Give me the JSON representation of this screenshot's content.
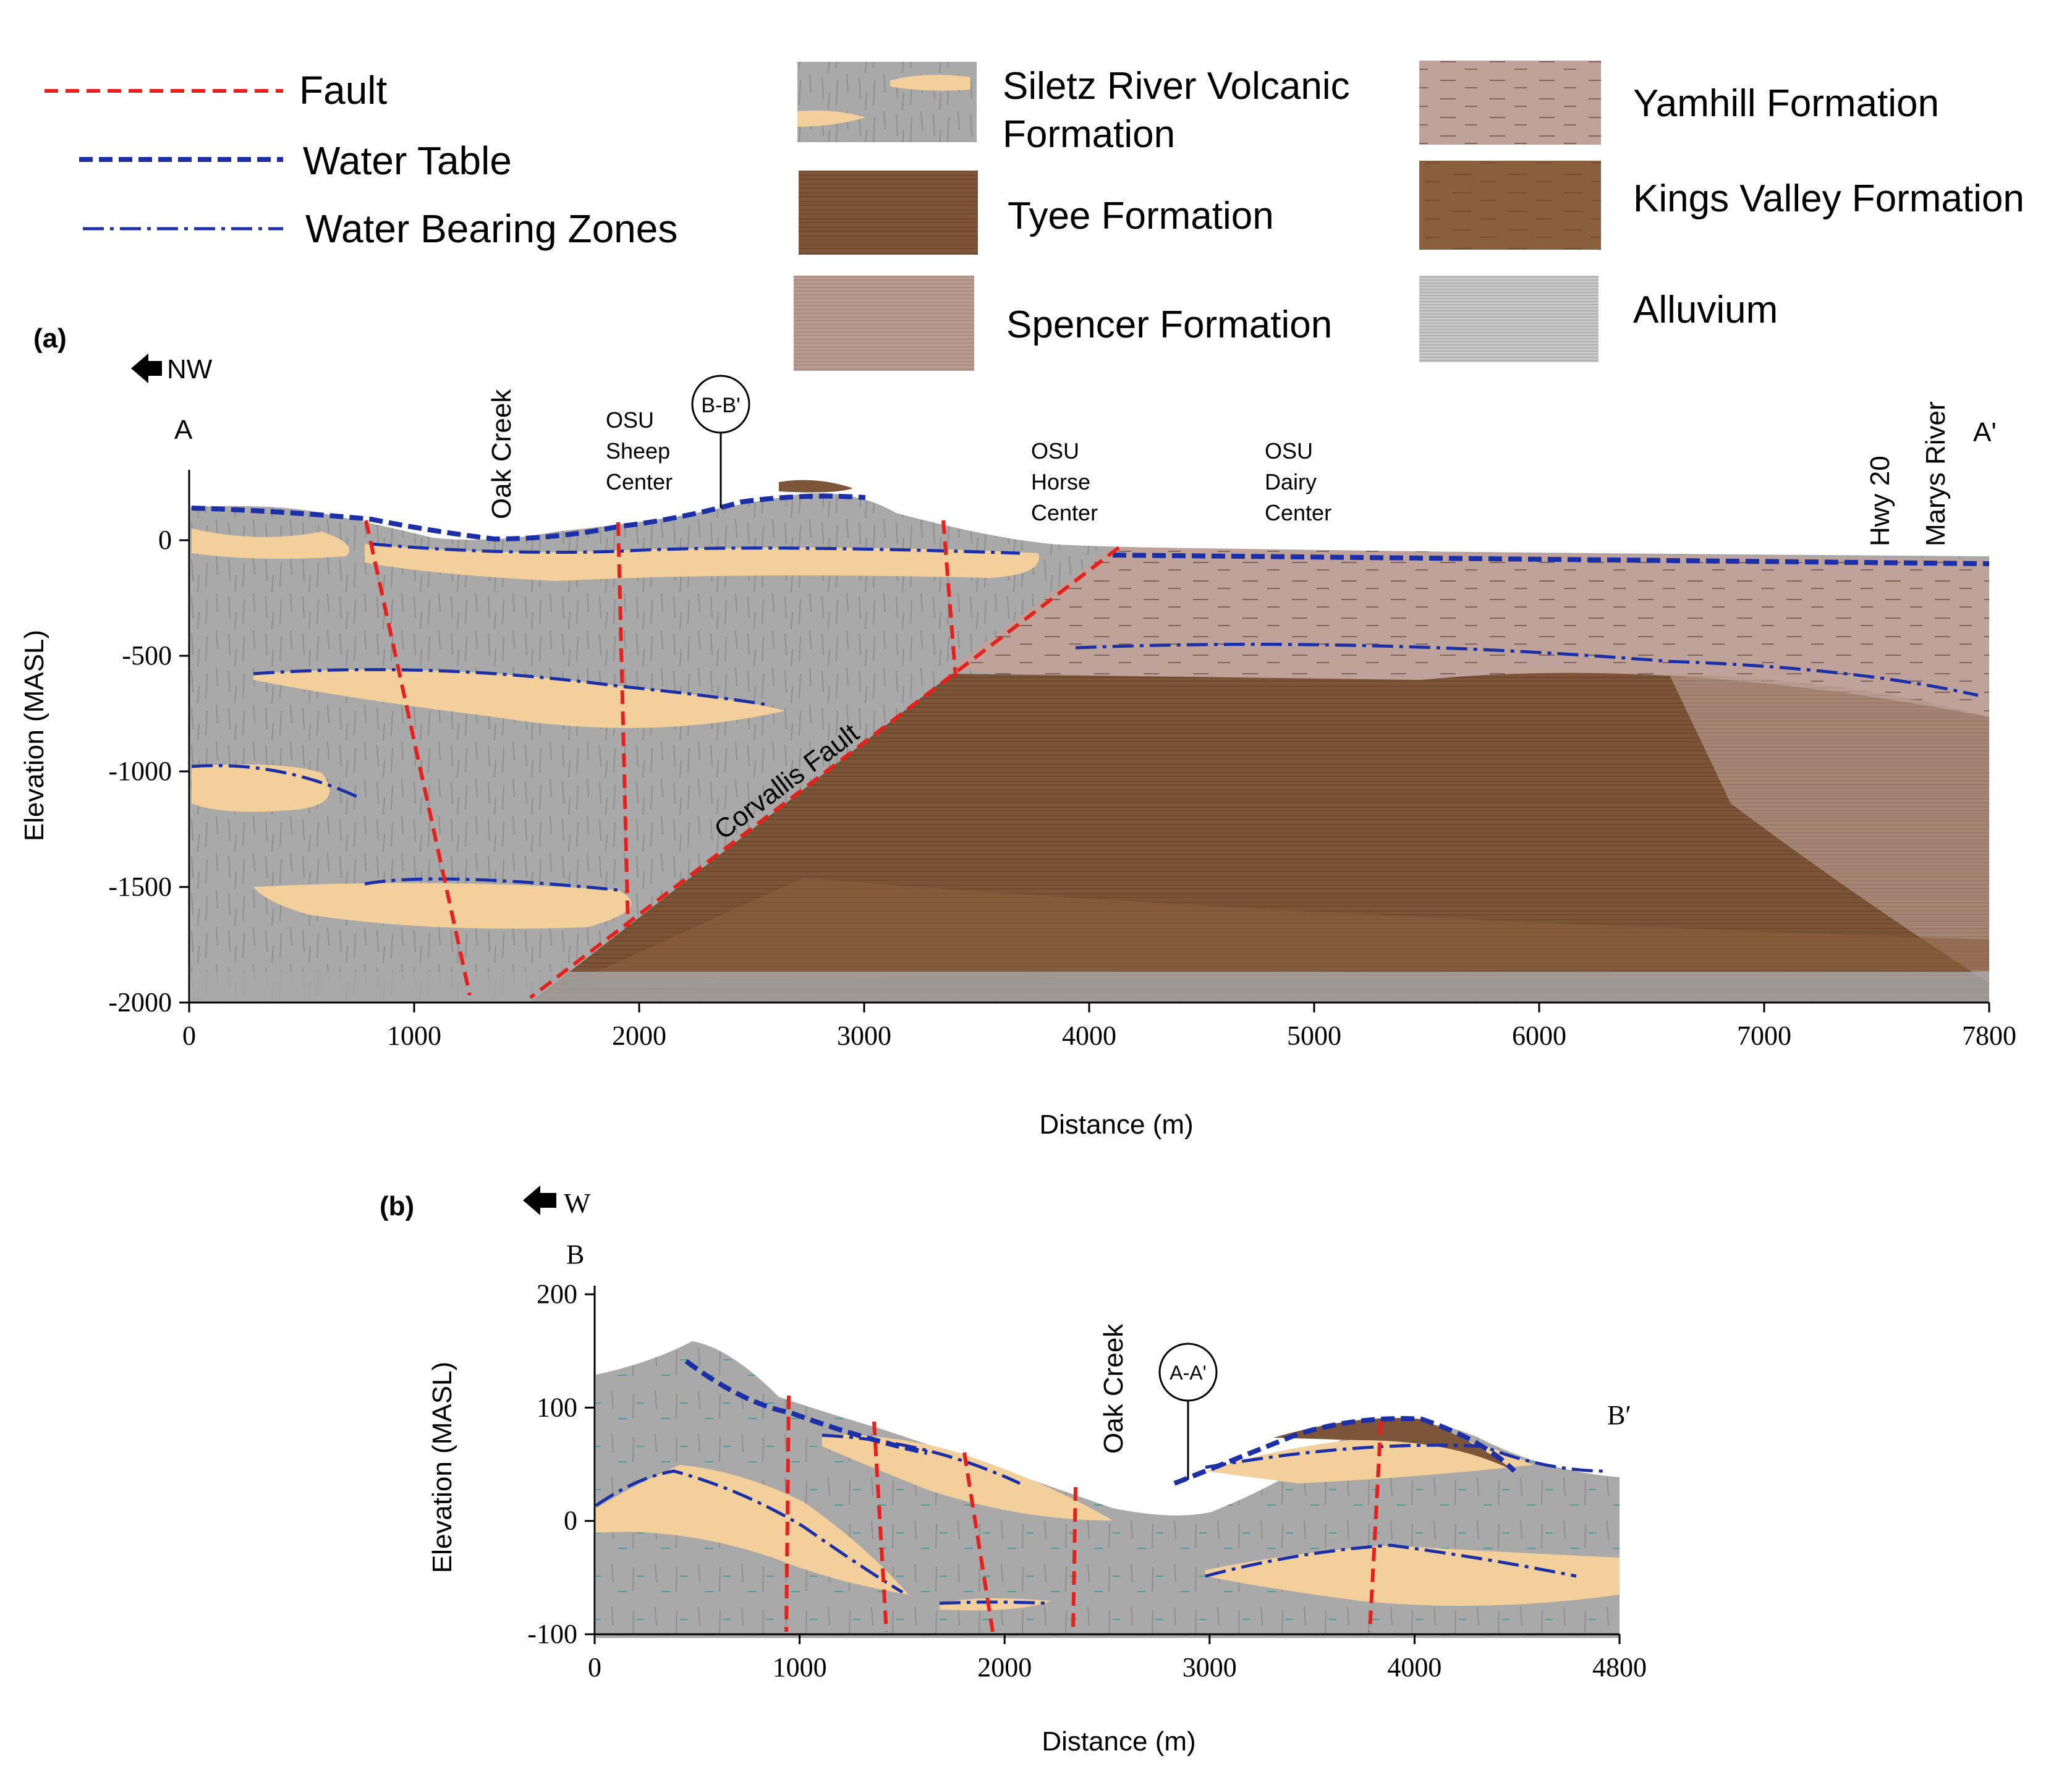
{
  "legend": {
    "lines": [
      {
        "label": "Fault",
        "color": "#e8201b",
        "style": "dashed"
      },
      {
        "label": "Water Table",
        "color": "#1a2fa8",
        "style": "dashed"
      },
      {
        "label": "Water Bearing Zones",
        "color": "#1a2fa8",
        "style": "dash-dot"
      }
    ],
    "units": [
      {
        "label_line1": "Siletz River Volcanic",
        "label_line2": "Formation",
        "color": "#a9a9a9"
      },
      {
        "label": "Tyee Formation",
        "color": "#7c5538"
      },
      {
        "label": "Spencer Formation",
        "color": "#b99b91"
      },
      {
        "label": "Yamhill Formation",
        "color": "#bfa29a"
      },
      {
        "label": "Kings Valley Formation",
        "color": "#8a5f3d"
      },
      {
        "label": "Alluvium",
        "color": "#c9c9c9"
      }
    ]
  },
  "section_a": {
    "panel_label": "(a)",
    "direction": "NW",
    "start_label": "A",
    "end_label": "A'",
    "ylabel": "Elevation (MASL)",
    "xlabel": "Distance (m)",
    "x_ticks": [
      "0",
      "1000",
      "2000",
      "3000",
      "4000",
      "5000",
      "6000",
      "7000",
      "7800"
    ],
    "y_ticks": [
      "0",
      "-500",
      "-1000",
      "-1500",
      "-2000"
    ],
    "features": {
      "oak_creek": "Oak Creek",
      "osu_sheep": [
        "OSU",
        "Sheep",
        "Center"
      ],
      "section_marker": "B-B'",
      "osu_horse": [
        "OSU",
        "Horse",
        "Center"
      ],
      "osu_dairy": [
        "OSU",
        "Dairy",
        "Center"
      ],
      "hwy": "Hwy 20",
      "marys": "Marys River",
      "corvallis_fault": "Corvallis Fault"
    }
  },
  "section_b": {
    "panel_label": "(b)",
    "direction": "W",
    "start_label": "B",
    "end_label": "B′",
    "ylabel": "Elevation (MASL)",
    "xlabel": "Distance (m)",
    "x_ticks": [
      "0",
      "1000",
      "2000",
      "3000",
      "4000",
      "4800"
    ],
    "y_ticks": [
      "200",
      "100",
      "0",
      "-100"
    ],
    "features": {
      "oak_creek": "Oak Creek",
      "section_marker": "A-A'"
    }
  },
  "colors": {
    "fault": "#e8201b",
    "water": "#1a2fa8",
    "siletz": "#a9a9a9",
    "sand": "#f3cf9c",
    "tyee": "#7c5538",
    "spencer": "#b99b91",
    "yamhill": "#bfa29a",
    "kings": "#8a5f3d"
  }
}
